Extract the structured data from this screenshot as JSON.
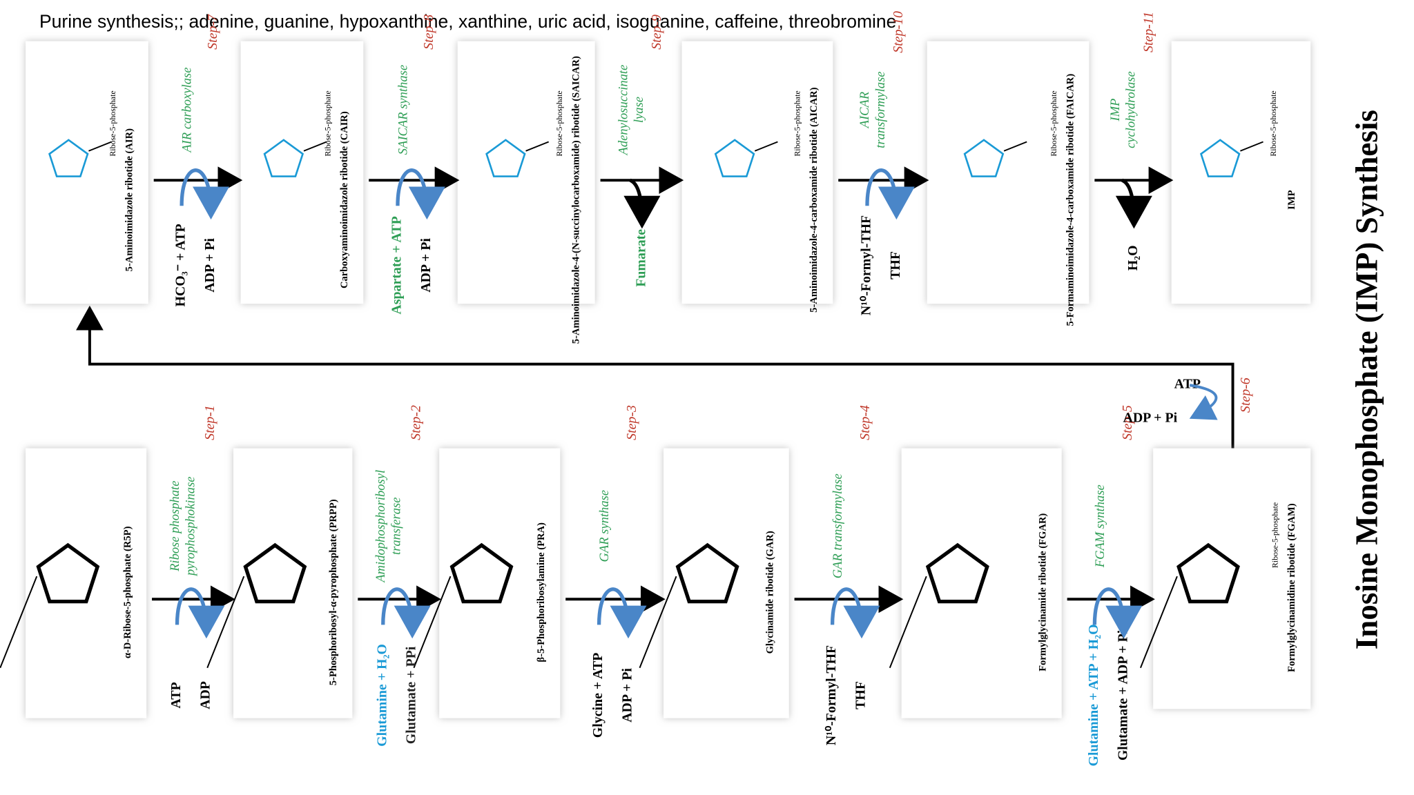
{
  "header": {
    "title": "Purine synthesis;; adenine, guanine, hypoxanthine, xanthine, uric acid, isoguanine, caffeine, threobromine"
  },
  "side_title": "Inosine Monophosphate (IMP) Synthesis",
  "ribose_label": "Ribose-5-phosphate",
  "compounds": [
    {
      "name": "α-D-Ribose-5-phosphate (R5P)"
    },
    {
      "name": "5-Phosphoribosyl-α-pyrophosphate (PRPP)"
    },
    {
      "name": "β-5-Phosphoribosylamine (PRA)"
    },
    {
      "name": "Glycinamide ribotide (GAR)"
    },
    {
      "name": "Formylglycinamide ribotide (FGAR)"
    },
    {
      "name": "Formylglycinamidine ribotide (FGAM)"
    },
    {
      "name": "5-Aminoimidazole ribotide (AIR)"
    },
    {
      "name": "Carboxyaminoimidazole ribotide (CAIR)"
    },
    {
      "name": "5-Aminoimidazole-4-(N-succinylocarboxamide) ribotide (SAICAR)"
    },
    {
      "name": "5-Aminoimidazole-4-carboxamide ribotide (AICAR)"
    },
    {
      "name": "5-Formaminoimidazole-4-carboxamide ribotide (FAICAR)"
    },
    {
      "name": "IMP"
    }
  ],
  "steps": [
    {
      "label": "Step-1",
      "enzyme": [
        "Ribose phosphate",
        "pyrophosphokinase"
      ],
      "in": "ATP",
      "out": "ADP"
    },
    {
      "label": "Step-2",
      "enzyme": [
        "Amidophosphoribosyl",
        "transferase"
      ],
      "in": "Glutamine + H₂O",
      "out": "Glutamate + PPi"
    },
    {
      "label": "Step-3",
      "enzyme": [
        "GAR synthase"
      ],
      "in": "Glycine + ATP",
      "out": "ADP + Pi"
    },
    {
      "label": "Step-4",
      "enzyme": [
        "GAR transformylase"
      ],
      "in": "N¹⁰-Formyl-THF",
      "out": "THF"
    },
    {
      "label": "Step-5",
      "enzyme": [
        "FGAM synthase"
      ],
      "in": "Glutamine + ATP + H₂O",
      "out": "Glutamate + ADP + Pi"
    },
    {
      "label": "Step-6",
      "in": "ATP",
      "out": "ADP + Pi"
    },
    {
      "label": "Step-7",
      "enzyme": [
        "AIR carboxylase"
      ],
      "in": "HCO₃⁻ + ATP",
      "out": "ADP + Pi"
    },
    {
      "label": "Step-8",
      "enzyme": [
        "SAICAR synthase"
      ],
      "in": "Aspartate + ATP",
      "out": "ADP + Pi"
    },
    {
      "label": "Step-9",
      "enzyme": [
        "Adenylosuccinate",
        "lyase"
      ],
      "out": "Fumarate"
    },
    {
      "label": "Step-10",
      "enzyme": [
        "AICAR",
        "transformylase"
      ],
      "in": "N¹⁰-Formyl-THF",
      "out": "THF"
    },
    {
      "label": "Step-11",
      "enzyme": [
        "IMP",
        "cyclohydrolase"
      ],
      "out": "H₂O"
    }
  ]
}
